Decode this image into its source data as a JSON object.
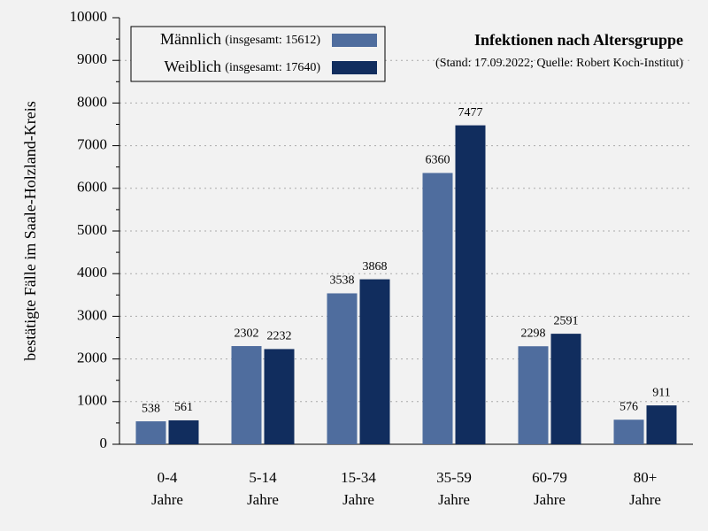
{
  "chart_data": {
    "type": "bar",
    "title": "Infektionen nach Altersgruppe",
    "subtitle": "(Stand: 17.09.2022; Quelle: Robert Koch-Institut)",
    "y_label": "bestätigte Fälle im Saale-Holzland-Kreis",
    "categories": [
      "0-4 Jahre",
      "5-14 Jahre",
      "15-34 Jahre",
      "35-59 Jahre",
      "60-79 Jahre",
      "80+ Jahre"
    ],
    "series": [
      {
        "name": "Männlich",
        "total_label": "(insgesamt: 15612)",
        "color": "#4f6d9e",
        "values": [
          538,
          2302,
          3538,
          6360,
          2298,
          576
        ]
      },
      {
        "name": "Weiblich",
        "total_label": "(insgesamt: 17640)",
        "color": "#112d5e",
        "values": [
          561,
          2232,
          3868,
          7477,
          2591,
          911
        ]
      }
    ],
    "ylim": [
      0,
      10000
    ],
    "yticks": [
      0,
      1000,
      2000,
      3000,
      4000,
      5000,
      6000,
      7000,
      8000,
      9000,
      10000
    ],
    "yminorticks": [
      500,
      1500,
      2500,
      3500,
      4500,
      5500,
      6500,
      7500,
      8500,
      9500
    ],
    "grid": true,
    "legend": "top-left"
  }
}
